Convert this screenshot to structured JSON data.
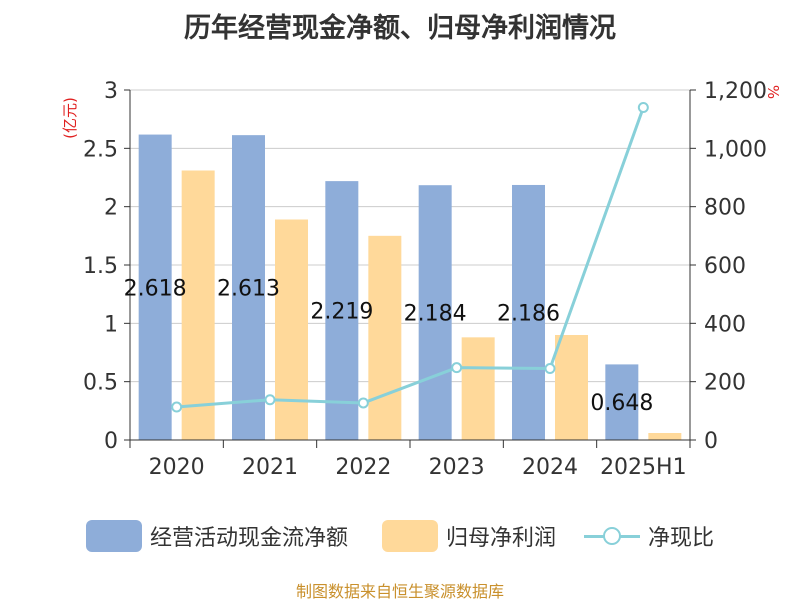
{
  "title": "历年经营现金净额、归母净利润情况",
  "source": "制图数据来自恒生聚源数据库",
  "colors": {
    "bar1": "#8eadd9",
    "bar2": "#ffd99a",
    "line": "#88d0d9",
    "axis_label_left": "#e02020",
    "axis_label_right": "#e02020"
  },
  "chart_data": {
    "type": "bar",
    "categories": [
      "2020",
      "2021",
      "2022",
      "2023",
      "2024",
      "2025H1"
    ],
    "y_left": {
      "label": "(亿元)",
      "ylim": [
        0,
        3
      ],
      "ticks": [
        "0",
        "0.5",
        "1",
        "1.5",
        "2",
        "2.5",
        "3"
      ]
    },
    "y_right": {
      "label": "%",
      "ylim": [
        0,
        1200
      ],
      "ticks": [
        "0",
        "200",
        "400",
        "600",
        "800",
        "1,000",
        "1,200"
      ]
    },
    "series": [
      {
        "name": "经营活动现金流净额",
        "type": "bar",
        "axis": "left",
        "values": [
          2.618,
          2.613,
          2.219,
          2.184,
          2.186,
          0.648
        ],
        "labels": [
          "2.618",
          "2.613",
          "2.219",
          "2.184",
          "2.186",
          "0.648"
        ]
      },
      {
        "name": "归母净利润",
        "type": "bar",
        "axis": "left",
        "values": [
          2.31,
          1.89,
          1.75,
          0.88,
          0.9,
          0.06
        ]
      },
      {
        "name": "净现比",
        "type": "line",
        "axis": "right",
        "values": [
          113,
          138,
          127,
          248,
          245,
          1140
        ]
      }
    ],
    "grid": true,
    "legend_position": "bottom"
  }
}
